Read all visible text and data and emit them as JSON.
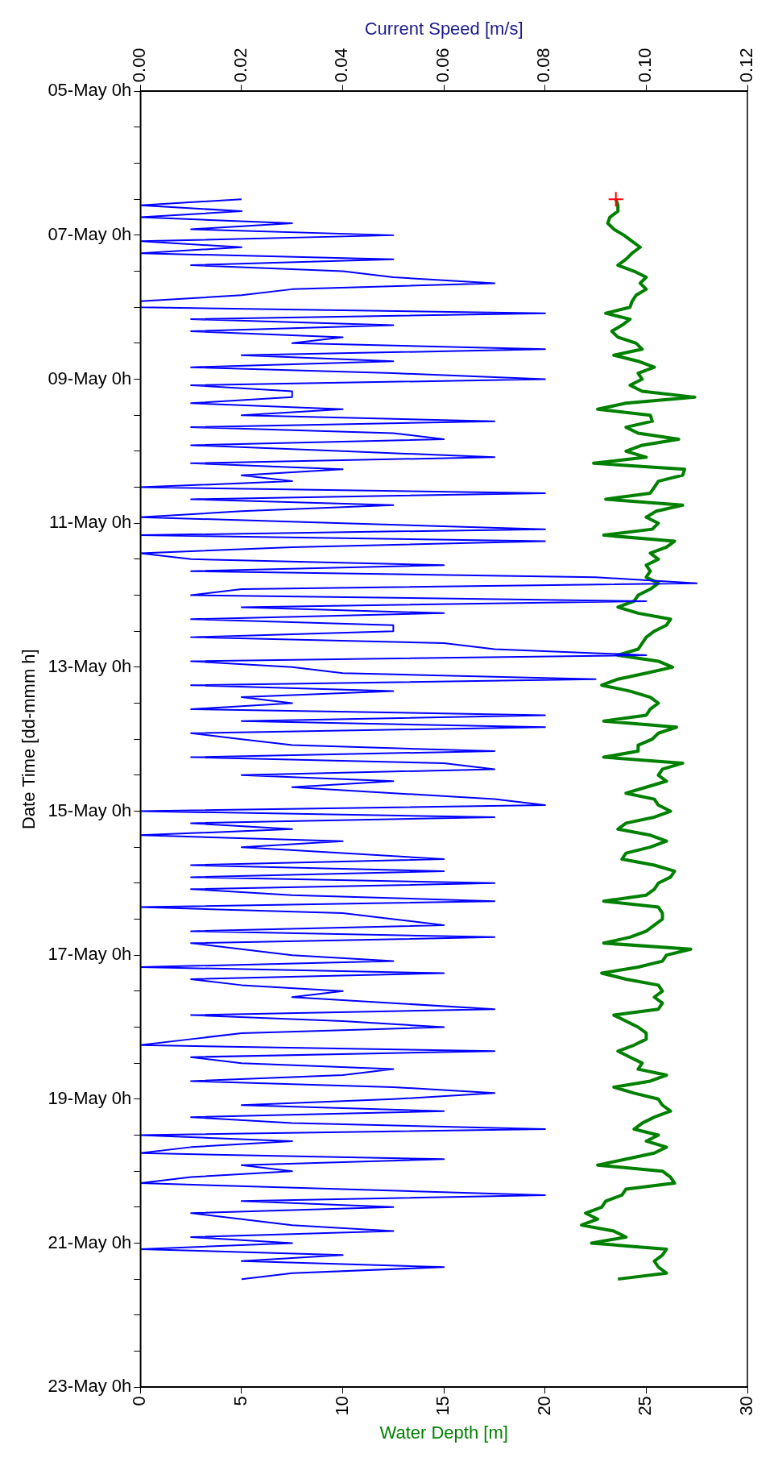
{
  "chart_data": {
    "type": "line",
    "orientation": "horizontal",
    "xlabel": "Water Depth [m]",
    "x2label": "Current Speed [m/s]",
    "ylabel": "Date Time [dd-mmm h]",
    "xlim": [
      0,
      30
    ],
    "xticks": [
      0,
      5,
      10,
      15,
      20,
      25,
      30
    ],
    "x2lim": [
      0,
      0.12
    ],
    "x2ticks": [
      {
        "value": 0,
        "label": "0.00"
      },
      {
        "value": 0.02,
        "label": "0.02"
      },
      {
        "value": 0.04,
        "label": "0.04"
      },
      {
        "value": 0.06,
        "label": "0.06"
      },
      {
        "value": 0.08,
        "label": "0.08"
      },
      {
        "value": 0.1,
        "label": "0.10"
      },
      {
        "value": 0.12,
        "label": "0.12"
      }
    ],
    "ylim": [
      "--05-23",
      "--05-05"
    ],
    "yticks": [
      {
        "value": "--05-05",
        "label": "05-May 0h"
      },
      {
        "value": "--05-05T12:00",
        "label": null
      },
      {
        "value": "--05-06",
        "label": null
      },
      {
        "value": "--05-06T12:00",
        "label": null
      },
      {
        "value": "--05-07",
        "label": "07-May 0h"
      },
      {
        "value": "--05-07T12:00",
        "label": null
      },
      {
        "value": "--05-08",
        "label": null
      },
      {
        "value": "--05-08T12:00",
        "label": null
      },
      {
        "value": "--05-09",
        "label": "09-May 0h"
      },
      {
        "value": "--05-09T12:00",
        "label": null
      },
      {
        "value": "--05-10",
        "label": null
      },
      {
        "value": "--05-10T12:00",
        "label": null
      },
      {
        "value": "--05-11",
        "label": "11-May 0h"
      },
      {
        "value": "--05-11T12:00",
        "label": null
      },
      {
        "value": "--05-12",
        "label": null
      },
      {
        "value": "--05-12T12:00",
        "label": null
      },
      {
        "value": "--05-13",
        "label": "13-May 0h"
      },
      {
        "value": "--05-13T12:00",
        "label": null
      },
      {
        "value": "--05-14",
        "label": null
      },
      {
        "value": "--05-14T12:00",
        "label": null
      },
      {
        "value": "--05-15",
        "label": "15-May 0h"
      },
      {
        "value": "--05-15T12:00",
        "label": null
      },
      {
        "value": "--05-16",
        "label": null
      },
      {
        "value": "--05-16T12:00",
        "label": null
      },
      {
        "value": "--05-17",
        "label": "17-May 0h"
      },
      {
        "value": "--05-17T12:00",
        "label": null
      },
      {
        "value": "--05-18",
        "label": null
      },
      {
        "value": "--05-18T12:00",
        "label": null
      },
      {
        "value": "--05-19",
        "label": "19-May 0h"
      },
      {
        "value": "--05-19T12:00",
        "label": null
      },
      {
        "value": "--05-20",
        "label": null
      },
      {
        "value": "--05-20T12:00",
        "label": null
      },
      {
        "value": "--05-21",
        "label": "21-May 0h"
      },
      {
        "value": "--05-21T12:00",
        "label": null
      },
      {
        "value": "--05-22",
        "label": null
      },
      {
        "value": "--05-22T12:00",
        "label": null
      },
      {
        "value": "--05-23",
        "label": "23-May 0h"
      }
    ],
    "legend": false,
    "x": [
      "--05-06T12:00",
      "--05-06T14:00",
      "--05-06T16:00",
      "--05-06T18:00",
      "--05-06T20:00",
      "--05-06T22:00",
      "--05-07T00:00",
      "--05-07T02:00",
      "--05-07T04:00",
      "--05-07T06:00",
      "--05-07T08:00",
      "--05-07T10:00",
      "--05-07T12:00",
      "--05-07T14:00",
      "--05-07T16:00",
      "--05-07T18:00",
      "--05-07T20:00",
      "--05-07T22:00",
      "--05-08T00:00",
      "--05-08T02:00",
      "--05-08T04:00",
      "--05-08T06:00",
      "--05-08T08:00",
      "--05-08T10:00",
      "--05-08T12:00",
      "--05-08T14:00",
      "--05-08T16:00",
      "--05-08T18:00",
      "--05-08T20:00",
      "--05-08T22:00",
      "--05-09T00:00",
      "--05-09T02:00",
      "--05-09T04:00",
      "--05-09T06:00",
      "--05-09T08:00",
      "--05-09T10:00",
      "--05-09T12:00",
      "--05-09T14:00",
      "--05-09T16:00",
      "--05-09T18:00",
      "--05-09T20:00",
      "--05-09T22:00",
      "--05-10T00:00",
      "--05-10T02:00",
      "--05-10T04:00",
      "--05-10T06:00",
      "--05-10T08:00",
      "--05-10T10:00",
      "--05-10T12:00",
      "--05-10T14:00",
      "--05-10T16:00",
      "--05-10T18:00",
      "--05-10T20:00",
      "--05-10T22:00",
      "--05-11T00:00",
      "--05-11T02:00",
      "--05-11T04:00",
      "--05-11T06:00",
      "--05-11T08:00",
      "--05-11T10:00",
      "--05-11T12:00",
      "--05-11T14:00",
      "--05-11T16:00",
      "--05-11T18:00",
      "--05-11T20:00",
      "--05-11T22:00",
      "--05-12T00:00",
      "--05-12T02:00",
      "--05-12T04:00",
      "--05-12T06:00",
      "--05-12T08:00",
      "--05-12T10:00",
      "--05-12T12:00",
      "--05-12T14:00",
      "--05-12T16:00",
      "--05-12T18:00",
      "--05-12T20:00",
      "--05-12T22:00",
      "--05-13T00:00",
      "--05-13T02:00",
      "--05-13T04:00",
      "--05-13T06:00",
      "--05-13T08:00",
      "--05-13T10:00",
      "--05-13T12:00",
      "--05-13T14:00",
      "--05-13T16:00",
      "--05-13T18:00",
      "--05-13T20:00",
      "--05-13T22:00",
      "--05-14T00:00",
      "--05-14T02:00",
      "--05-14T04:00",
      "--05-14T06:00",
      "--05-14T08:00",
      "--05-14T10:00",
      "--05-14T12:00",
      "--05-14T14:00",
      "--05-14T16:00",
      "--05-14T18:00",
      "--05-14T20:00",
      "--05-14T22:00",
      "--05-15T00:00",
      "--05-15T02:00",
      "--05-15T04:00",
      "--05-15T06:00",
      "--05-15T08:00",
      "--05-15T10:00",
      "--05-15T12:00",
      "--05-15T14:00",
      "--05-15T16:00",
      "--05-15T18:00",
      "--05-15T20:00",
      "--05-15T22:00",
      "--05-16T00:00",
      "--05-16T02:00",
      "--05-16T04:00",
      "--05-16T06:00",
      "--05-16T08:00",
      "--05-16T10:00",
      "--05-16T12:00",
      "--05-16T14:00",
      "--05-16T16:00",
      "--05-16T18:00",
      "--05-16T20:00",
      "--05-16T22:00",
      "--05-17T00:00",
      "--05-17T02:00",
      "--05-17T04:00",
      "--05-17T06:00",
      "--05-17T08:00",
      "--05-17T10:00",
      "--05-17T12:00",
      "--05-17T14:00",
      "--05-17T16:00",
      "--05-17T18:00",
      "--05-17T20:00",
      "--05-17T22:00",
      "--05-18T00:00",
      "--05-18T02:00",
      "--05-18T04:00",
      "--05-18T06:00",
      "--05-18T08:00",
      "--05-18T10:00",
      "--05-18T12:00",
      "--05-18T14:00",
      "--05-18T16:00",
      "--05-18T18:00",
      "--05-18T20:00",
      "--05-18T22:00",
      "--05-19T00:00",
      "--05-19T02:00",
      "--05-19T04:00",
      "--05-19T06:00",
      "--05-19T08:00",
      "--05-19T10:00",
      "--05-19T12:00",
      "--05-19T14:00",
      "--05-19T16:00",
      "--05-19T18:00",
      "--05-19T20:00",
      "--05-19T22:00",
      "--05-20T00:00",
      "--05-20T02:00",
      "--05-20T04:00",
      "--05-20T06:00",
      "--05-20T08:00",
      "--05-20T10:00",
      "--05-20T12:00",
      "--05-20T14:00",
      "--05-20T16:00",
      "--05-20T18:00",
      "--05-20T20:00",
      "--05-20T22:00",
      "--05-21T00:00",
      "--05-21T02:00",
      "--05-21T04:00",
      "--05-21T06:00",
      "--05-21T08:00",
      "--05-21T10:00",
      "--05-21T12:00"
    ],
    "series": [
      {
        "color": "#0000ff",
        "axis": "x2",
        "marker": "none",
        "values": [
          0.02,
          0.0,
          0.02,
          0.0,
          0.03,
          0.01,
          0.05,
          0.0,
          0.02,
          0.0,
          0.05,
          0.01,
          0.04,
          0.05,
          0.07,
          0.03,
          0.02,
          0.0,
          0.0,
          0.08,
          0.01,
          0.05,
          0.01,
          0.04,
          0.03,
          0.08,
          0.02,
          0.05,
          0.01,
          0.05,
          0.08,
          0.01,
          0.03,
          0.03,
          0.01,
          0.04,
          0.02,
          0.07,
          0.01,
          0.05,
          0.06,
          0.01,
          0.04,
          0.07,
          0.01,
          0.04,
          0.02,
          0.03,
          0.0,
          0.08,
          0.01,
          0.05,
          0.02,
          0.0,
          0.04,
          0.08,
          0.0,
          0.08,
          0.03,
          0.0,
          0.01,
          0.06,
          0.01,
          0.09,
          0.11,
          0.02,
          0.01,
          0.1,
          0.02,
          0.06,
          0.01,
          0.05,
          0.05,
          0.01,
          0.06,
          0.07,
          0.1,
          0.01,
          0.03,
          0.04,
          0.09,
          0.01,
          0.05,
          0.02,
          0.03,
          0.01,
          0.08,
          0.02,
          0.08,
          0.01,
          0.02,
          0.03,
          0.07,
          0.01,
          0.06,
          0.07,
          0.02,
          0.05,
          0.03,
          0.05,
          0.07,
          0.08,
          0.0,
          0.07,
          0.01,
          0.03,
          0.0,
          0.04,
          0.02,
          0.04,
          0.06,
          0.01,
          0.06,
          0.01,
          0.07,
          0.01,
          0.03,
          0.07,
          0.0,
          0.04,
          0.05,
          0.06,
          0.01,
          0.07,
          0.01,
          0.02,
          0.03,
          0.05,
          0.0,
          0.06,
          0.01,
          0.02,
          0.04,
          0.03,
          0.05,
          0.07,
          0.01,
          0.04,
          0.06,
          0.02,
          0.01,
          0.0,
          0.07,
          0.01,
          0.02,
          0.05,
          0.04,
          0.01,
          0.05,
          0.07,
          0.05,
          0.02,
          0.06,
          0.01,
          0.03,
          0.08,
          0.0,
          0.03,
          0.01,
          0.0,
          0.06,
          0.02,
          0.03,
          0.01,
          0.0,
          0.04,
          0.08,
          0.02,
          0.05,
          0.01,
          0.02,
          0.03,
          0.05,
          0.01,
          0.03,
          0.0,
          0.04,
          0.02,
          0.06,
          0.03,
          0.02
        ]
      },
      {
        "color": "#008000",
        "marker": "none",
        "values": [
          23.5,
          23.6,
          23.6,
          23.2,
          23.1,
          23.4,
          23.9,
          24.3,
          24.7,
          24.3,
          24.0,
          23.6,
          24.4,
          25.0,
          24.7,
          25.0,
          24.5,
          24.3,
          24.2,
          23.0,
          24.2,
          23.8,
          23.3,
          23.6,
          24.5,
          24.8,
          23.4,
          24.6,
          25.4,
          24.6,
          24.8,
          24.2,
          24.8,
          27.4,
          24.0,
          22.6,
          25.2,
          25.3,
          24.0,
          24.6,
          26.6,
          24.8,
          24.0,
          25.0,
          22.4,
          26.9,
          26.8,
          25.6,
          25.4,
          25.2,
          23.0,
          26.8,
          25.5,
          25.0,
          25.6,
          25.3,
          22.9,
          26.4,
          26.0,
          25.2,
          25.6,
          25.0,
          25.2,
          25.0,
          25.6,
          25.2,
          24.6,
          24.4,
          23.6,
          24.6,
          26.2,
          26.0,
          25.4,
          25.0,
          24.8,
          24.6,
          23.6,
          25.6,
          26.3,
          25.0,
          23.6,
          22.8,
          24.2,
          25.2,
          25.6,
          25.2,
          25.0,
          22.9,
          26.5,
          25.6,
          25.3,
          24.6,
          24.6,
          22.9,
          26.8,
          25.8,
          25.6,
          26.0,
          25.0,
          24.0,
          25.4,
          25.6,
          26.2,
          25.4,
          24.0,
          23.6,
          25.2,
          26.0,
          25.2,
          24.0,
          23.8,
          25.4,
          26.4,
          26.2,
          25.6,
          25.4,
          25.0,
          22.9,
          25.6,
          25.8,
          25.8,
          25.4,
          25.0,
          24.2,
          22.9,
          27.2,
          26.0,
          25.8,
          24.6,
          22.8,
          24.0,
          25.6,
          25.8,
          25.4,
          25.8,
          25.6,
          23.4,
          24.0,
          24.6,
          25.0,
          25.0,
          24.4,
          23.6,
          24.2,
          24.8,
          24.6,
          26.0,
          25.2,
          23.4,
          24.4,
          25.6,
          25.8,
          26.2,
          25.4,
          24.8,
          24.4,
          25.6,
          25.0,
          26.0,
          25.4,
          24.0,
          22.6,
          25.8,
          26.2,
          26.4,
          24.0,
          23.8,
          23.0,
          22.8,
          22.0,
          22.6,
          21.8,
          23.4,
          24.0,
          22.3,
          26.0,
          25.8,
          25.4,
          25.6,
          26.0,
          23.6
        ]
      },
      {
        "type": "scatter",
        "color": "#ff0000",
        "marker": "cross",
        "x": [
          "--05-06T12:00"
        ],
        "values": [
          23.5
        ]
      }
    ]
  }
}
